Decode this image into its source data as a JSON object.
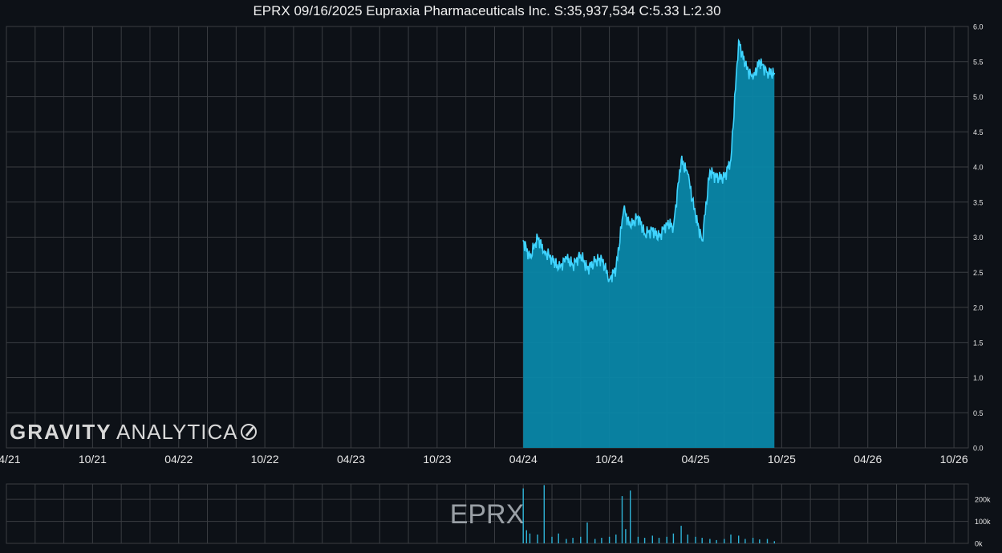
{
  "title": "EPRX 09/16/2025 Eupraxia Pharmaceuticals Inc. S:35,937,534 C:5.33 L:2.30",
  "watermark": {
    "gravity": "GRAVITY",
    "analytica": "ANALYTICA"
  },
  "volume_watermark": "EPRX",
  "colors": {
    "background": "#0d1117",
    "grid": "#3a3d42",
    "price_line": "#3fd4ff",
    "price_fill": "#0a87a8",
    "volume": "#2fb4d8",
    "text": "#e6e6e6"
  },
  "chart_data": [
    {
      "type": "area",
      "xlim": [
        "2021-04",
        "2026-11"
      ],
      "ylim": [
        0,
        6
      ],
      "grid": true,
      "x_tick_labels": [
        "04/21",
        "10/21",
        "04/22",
        "10/22",
        "04/23",
        "10/23",
        "04/24",
        "10/24",
        "04/25",
        "10/25",
        "04/26",
        "10/26"
      ],
      "y_tick_labels": [
        "0.0",
        "0.5",
        "1.0",
        "1.5",
        "2.0",
        "2.5",
        "3.0",
        "3.5",
        "4.0",
        "4.5",
        "5.0",
        "5.5",
        "6.0"
      ],
      "series": [
        {
          "x": [
            "2024-04-01",
            "2024-04-15",
            "2024-05-01",
            "2024-05-15",
            "2024-06-01",
            "2024-06-15",
            "2024-07-01",
            "2024-07-15",
            "2024-08-01",
            "2024-08-15",
            "2024-09-01",
            "2024-09-15",
            "2024-10-01",
            "2024-10-15",
            "2024-11-01",
            "2024-11-15",
            "2024-12-01",
            "2024-12-15",
            "2025-01-01",
            "2025-01-15",
            "2025-02-01",
            "2025-02-15",
            "2025-03-01",
            "2025-03-15",
            "2025-04-01",
            "2025-04-15",
            "2025-05-01",
            "2025-05-15",
            "2025-06-01",
            "2025-06-15",
            "2025-07-01",
            "2025-07-15",
            "2025-08-01",
            "2025-08-15",
            "2025-09-01",
            "2025-09-16"
          ],
          "values": [
            2.95,
            2.7,
            3.0,
            2.8,
            2.7,
            2.55,
            2.7,
            2.6,
            2.75,
            2.55,
            2.65,
            2.7,
            2.4,
            2.55,
            3.4,
            3.15,
            3.3,
            3.05,
            3.1,
            3.0,
            3.2,
            3.15,
            4.1,
            3.9,
            3.3,
            2.95,
            3.95,
            3.85,
            3.85,
            4.1,
            5.8,
            5.45,
            5.25,
            5.5,
            5.35,
            5.33
          ]
        }
      ]
    },
    {
      "type": "bar",
      "ylabel": "",
      "y_tick_labels": [
        "0k",
        "100k",
        "200k"
      ],
      "ylim": [
        0,
        270000
      ],
      "grid": true,
      "x": [
        "2024-04-01",
        "2024-04-08",
        "2024-04-15",
        "2024-05-01",
        "2024-05-15",
        "2024-06-01",
        "2024-06-15",
        "2024-07-01",
        "2024-07-15",
        "2024-08-01",
        "2024-08-15",
        "2024-09-01",
        "2024-09-15",
        "2024-10-01",
        "2024-10-15",
        "2024-10-28",
        "2024-11-05",
        "2024-11-15",
        "2024-12-01",
        "2024-12-15",
        "2025-01-01",
        "2025-01-15",
        "2025-02-01",
        "2025-02-15",
        "2025-03-01",
        "2025-03-15",
        "2025-04-01",
        "2025-04-15",
        "2025-05-01",
        "2025-05-15",
        "2025-06-01",
        "2025-06-15",
        "2025-07-01",
        "2025-07-15",
        "2025-08-01",
        "2025-08-15",
        "2025-09-01",
        "2025-09-16"
      ],
      "values": [
        250000,
        60000,
        45000,
        40000,
        265000,
        30000,
        45000,
        20000,
        25000,
        30000,
        95000,
        20000,
        25000,
        30000,
        40000,
        215000,
        65000,
        240000,
        30000,
        25000,
        35000,
        25000,
        30000,
        45000,
        80000,
        40000,
        30000,
        25000,
        20000,
        15000,
        20000,
        40000,
        35000,
        20000,
        25000,
        18000,
        20000,
        10000
      ]
    }
  ]
}
